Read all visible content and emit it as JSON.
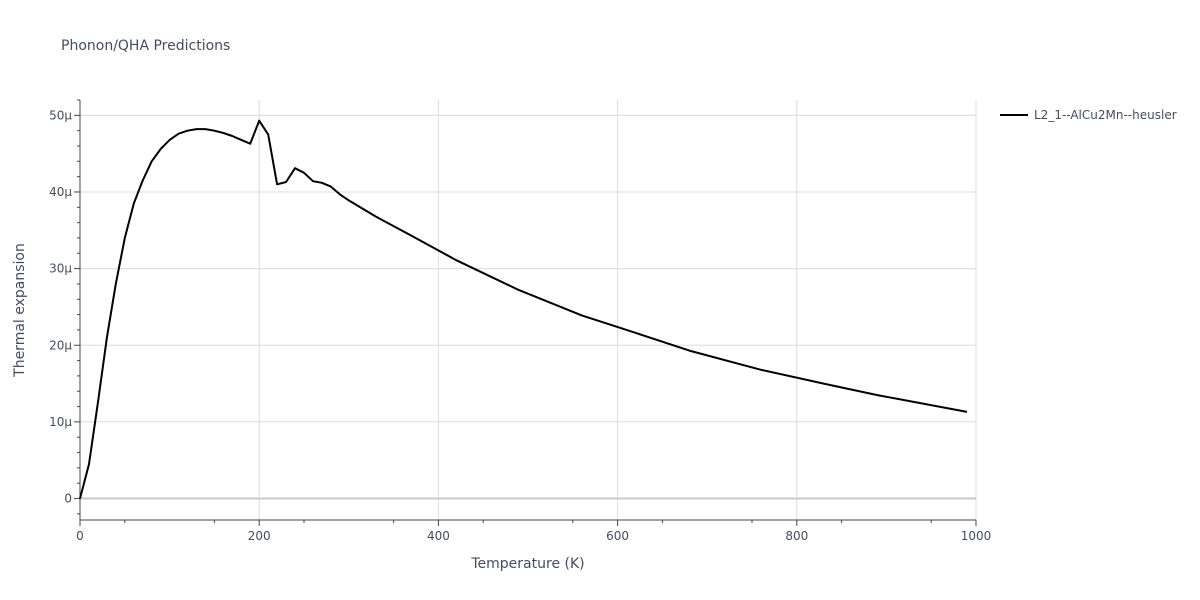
{
  "chart_data": {
    "type": "line",
    "title": "Phonon/QHA Predictions",
    "xlabel": "Temperature (K)",
    "ylabel": "Thermal expansion",
    "xlim": [
      0,
      1000
    ],
    "ylim": [
      -2.8e-06,
      5.2e-05
    ],
    "x_ticks": [
      0,
      200,
      400,
      600,
      800,
      1000
    ],
    "x_tick_labels": [
      "0",
      "200",
      "400",
      "600",
      "800",
      "1000"
    ],
    "y_ticks": [
      0,
      1e-05,
      2e-05,
      3e-05,
      4e-05,
      5e-05
    ],
    "y_tick_labels": [
      "0",
      "10μ",
      "20μ",
      "30μ",
      "40μ",
      "50μ"
    ],
    "grid": true,
    "legend_position": "top-right",
    "series": [
      {
        "name": "L2_1--AlCu2Mn--heusler",
        "color": "#000000",
        "x": [
          0,
          10,
          20,
          30,
          40,
          50,
          60,
          70,
          80,
          90,
          100,
          110,
          120,
          130,
          140,
          150,
          160,
          170,
          180,
          190,
          200,
          210,
          220,
          230,
          240,
          250,
          260,
          270,
          280,
          290,
          300,
          330,
          370,
          420,
          490,
          560,
          610,
          680,
          760,
          830,
          890,
          990
        ],
        "y": [
          0,
          4.5e-06,
          1.25e-05,
          2.1e-05,
          2.8e-05,
          3.4e-05,
          3.85e-05,
          4.15e-05,
          4.4e-05,
          4.56e-05,
          4.68e-05,
          4.76e-05,
          4.8e-05,
          4.82e-05,
          4.82e-05,
          4.8e-05,
          4.77e-05,
          4.73e-05,
          4.68e-05,
          4.63e-05,
          4.93e-05,
          4.75e-05,
          4.1e-05,
          4.13e-05,
          4.31e-05,
          4.25e-05,
          4.14e-05,
          4.12e-05,
          4.07e-05,
          3.97e-05,
          3.89e-05,
          3.68e-05,
          3.43e-05,
          3.11e-05,
          2.72e-05,
          2.39e-05,
          2.2e-05,
          1.93e-05,
          1.68e-05,
          1.5e-05,
          1.35e-05,
          1.13e-05
        ]
      }
    ]
  }
}
